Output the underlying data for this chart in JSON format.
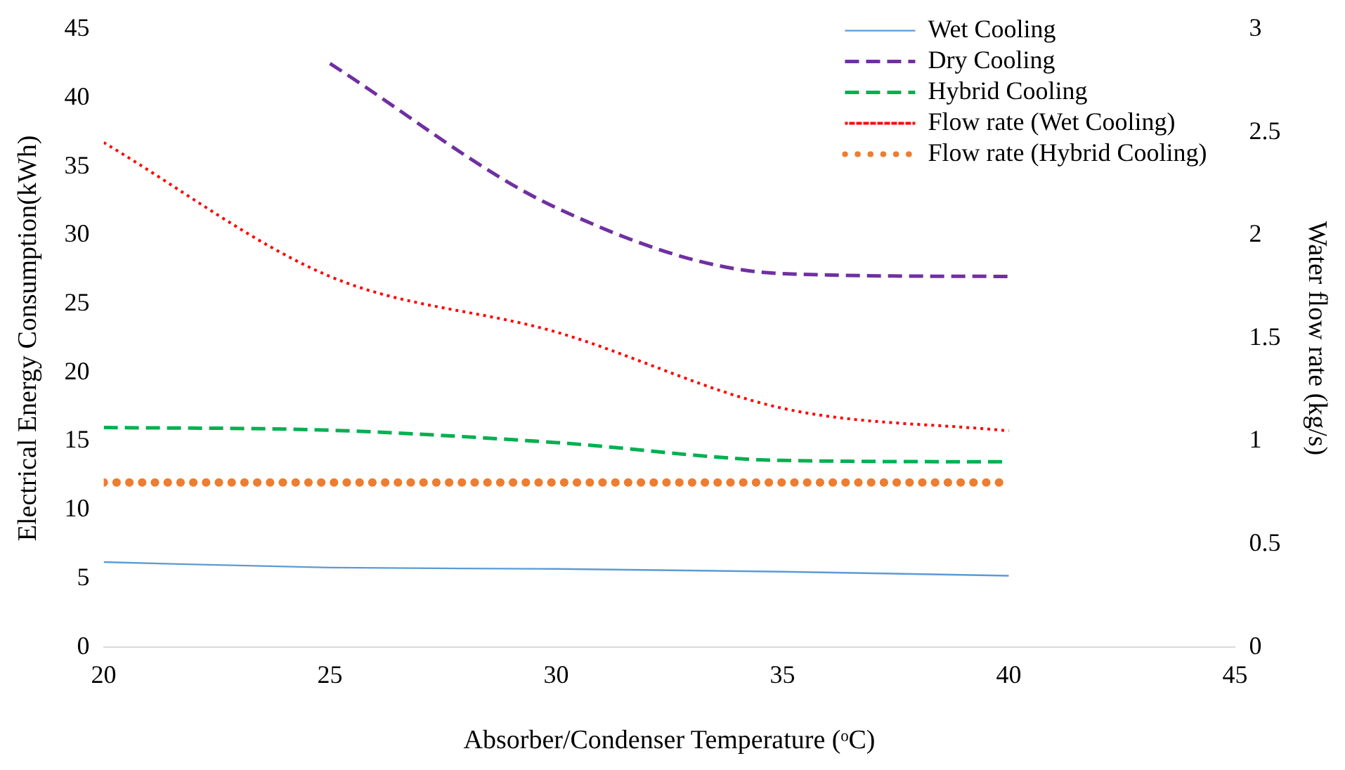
{
  "chart_data": {
    "type": "line",
    "xlabel": "Absorber/Condenser Temperature (ᵒC)",
    "ylabel": "Electrical Energy Consumption(kWh)",
    "y2label": "Water flow rate (kg/s)",
    "xlim": [
      20,
      45
    ],
    "xticks": [
      20,
      25,
      30,
      35,
      40,
      45
    ],
    "ylim": [
      0,
      45
    ],
    "yticks": [
      0,
      5,
      10,
      15,
      20,
      25,
      30,
      35,
      40,
      45
    ],
    "y2lim": [
      0,
      3
    ],
    "y2ticks": [
      0,
      0.5,
      1,
      1.5,
      2,
      2.5,
      3
    ],
    "grid": false,
    "legend": "top right",
    "marker": "none",
    "series": [
      {
        "name": "Wet Cooling",
        "color": "#5b9bd5",
        "line_style": "solid",
        "x": [
          20,
          25,
          30,
          35,
          40
        ],
        "values": [
          6.2,
          5.8,
          5.7,
          5.5,
          5.2
        ]
      },
      {
        "name": "Dry Cooling",
        "color": "#7030a0",
        "line_style": "dashed",
        "x": [
          25,
          30,
          35,
          40
        ],
        "values": [
          42.5,
          32,
          27.2,
          27
        ]
      },
      {
        "name": "Hybrid Cooling",
        "color": "#00b050",
        "line_style": "dashed",
        "x": [
          20,
          25,
          30,
          35,
          40
        ],
        "values": [
          16,
          15.8,
          14.9,
          13.6,
          13.5
        ]
      },
      {
        "name": "Flow rate (Wet Cooling)",
        "color": "#ff0000",
        "line_style": "dotted",
        "axis": "y2",
        "x": [
          20,
          25,
          30,
          35,
          40
        ],
        "values": [
          2.45,
          1.8,
          1.53,
          1.16,
          1.05
        ]
      },
      {
        "name": "Flow rate (Hybrid Cooling)",
        "color": "#ed7d31",
        "line_style": "dotted",
        "axis": "y2",
        "x": [
          20,
          25,
          30,
          35,
          40
        ],
        "values": [
          0.8,
          0.8,
          0.8,
          0.8,
          0.8
        ]
      }
    ]
  }
}
